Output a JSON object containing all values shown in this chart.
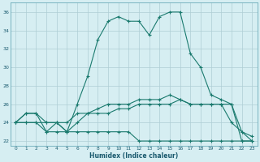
{
  "xlabel": "Humidex (Indice chaleur)",
  "x": [
    0,
    1,
    2,
    3,
    4,
    5,
    6,
    7,
    8,
    9,
    10,
    11,
    12,
    13,
    14,
    15,
    16,
    17,
    18,
    19,
    20,
    21,
    22,
    23
  ],
  "line1": [
    24,
    25,
    25,
    23,
    24,
    23,
    26,
    29,
    33,
    35,
    35.5,
    35,
    35,
    33.5,
    35.5,
    36,
    36,
    31.5,
    30,
    27,
    26.5,
    26,
    23,
    22.5
  ],
  "line2": [
    24,
    25,
    25,
    24,
    24,
    23,
    24,
    25,
    25,
    25,
    25.5,
    25.5,
    26,
    26,
    26,
    26,
    26.5,
    26,
    26,
    26,
    26,
    26,
    22,
    22
  ],
  "line3": [
    24,
    24,
    24,
    23,
    23,
    23,
    23,
    23,
    23,
    23,
    23,
    23,
    22,
    22,
    22,
    22,
    22,
    22,
    22,
    22,
    22,
    22,
    22,
    22
  ],
  "line4": [
    24,
    24,
    24,
    24,
    24,
    24,
    25,
    25,
    25.5,
    26,
    26,
    26,
    26.5,
    26.5,
    26.5,
    27,
    26.5,
    26,
    26,
    26,
    26,
    24,
    23,
    22
  ],
  "ylim": [
    21.5,
    37
  ],
  "xlim": [
    -0.5,
    23.5
  ],
  "yticks": [
    22,
    24,
    26,
    28,
    30,
    32,
    34,
    36
  ],
  "xtick_labels": [
    "0",
    "1",
    "2",
    "3",
    "4",
    "5",
    "6",
    "7",
    "8",
    "9",
    "10",
    "11",
    "12",
    "13",
    "14",
    "15",
    "16",
    "17",
    "18",
    "19",
    "20",
    "21",
    "22",
    "23"
  ],
  "line_color": "#1a7a6e",
  "bg_color": "#d6eef2",
  "grid_color": "#aecdd5"
}
